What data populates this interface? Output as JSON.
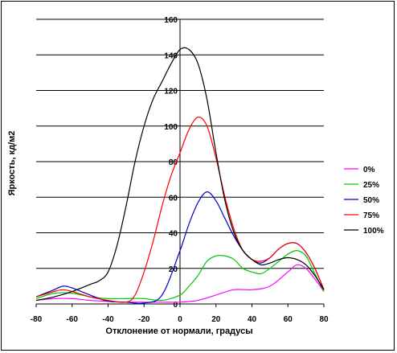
{
  "chart_data": {
    "type": "line",
    "title": "",
    "xlabel": "Отклонение от нормали, градусы",
    "ylabel": "Яркость, кд/м2",
    "xlim": [
      -80,
      80
    ],
    "ylim": [
      0,
      160
    ],
    "x_ticks": [
      "-80",
      "-60",
      "-40",
      "-20",
      "0",
      "20",
      "40",
      "60",
      "80"
    ],
    "y_ticks": [
      "0",
      "20",
      "40",
      "60",
      "80",
      "100",
      "120",
      "140",
      "160"
    ],
    "grid": "horizontal",
    "legend_position": "right",
    "series": [
      {
        "name": "0%",
        "color": "#ff00ff",
        "points": [
          [
            -80,
            2
          ],
          [
            -70,
            3
          ],
          [
            -60,
            3
          ],
          [
            -50,
            2
          ],
          [
            -40,
            1.5
          ],
          [
            -30,
            1
          ],
          [
            -20,
            1
          ],
          [
            -10,
            1
          ],
          [
            0,
            1
          ],
          [
            10,
            2
          ],
          [
            20,
            5
          ],
          [
            30,
            8
          ],
          [
            40,
            8
          ],
          [
            50,
            10
          ],
          [
            60,
            18
          ],
          [
            65,
            22
          ],
          [
            70,
            20
          ],
          [
            75,
            14
          ],
          [
            80,
            7
          ]
        ]
      },
      {
        "name": "25%",
        "color": "#00cc00",
        "points": [
          [
            -80,
            3
          ],
          [
            -70,
            6
          ],
          [
            -60,
            6
          ],
          [
            -50,
            4
          ],
          [
            -40,
            3
          ],
          [
            -30,
            3
          ],
          [
            -20,
            3
          ],
          [
            -10,
            2
          ],
          [
            0,
            5
          ],
          [
            5,
            10
          ],
          [
            10,
            16
          ],
          [
            15,
            24
          ],
          [
            20,
            27
          ],
          [
            25,
            27
          ],
          [
            30,
            25
          ],
          [
            35,
            20
          ],
          [
            40,
            18
          ],
          [
            45,
            17
          ],
          [
            50,
            20
          ],
          [
            55,
            24
          ],
          [
            60,
            28
          ],
          [
            65,
            30
          ],
          [
            70,
            27
          ],
          [
            75,
            17
          ],
          [
            80,
            7
          ]
        ]
      },
      {
        "name": "50%",
        "color": "#0000cc",
        "points": [
          [
            -80,
            4
          ],
          [
            -75,
            6
          ],
          [
            -70,
            8
          ],
          [
            -65,
            10
          ],
          [
            -60,
            9
          ],
          [
            -50,
            5
          ],
          [
            -40,
            1.5
          ],
          [
            -30,
            1
          ],
          [
            -20,
            0.5
          ],
          [
            -10,
            5
          ],
          [
            0,
            30
          ],
          [
            5,
            45
          ],
          [
            10,
            57
          ],
          [
            15,
            63
          ],
          [
            20,
            58
          ],
          [
            25,
            48
          ],
          [
            30,
            38
          ],
          [
            35,
            30
          ],
          [
            40,
            25
          ],
          [
            45,
            23
          ],
          [
            50,
            26
          ],
          [
            55,
            31
          ],
          [
            60,
            34
          ],
          [
            65,
            34
          ],
          [
            70,
            29
          ],
          [
            75,
            20
          ],
          [
            80,
            8
          ]
        ]
      },
      {
        "name": "75%",
        "color": "#ff0000",
        "points": [
          [
            -80,
            4
          ],
          [
            -70,
            7
          ],
          [
            -65,
            8
          ],
          [
            -60,
            7
          ],
          [
            -50,
            4
          ],
          [
            -40,
            2
          ],
          [
            -30,
            1
          ],
          [
            -25,
            5
          ],
          [
            -20,
            18
          ],
          [
            -15,
            35
          ],
          [
            -10,
            55
          ],
          [
            -5,
            72
          ],
          [
            0,
            85
          ],
          [
            5,
            98
          ],
          [
            10,
            105
          ],
          [
            15,
            100
          ],
          [
            20,
            82
          ],
          [
            25,
            60
          ],
          [
            30,
            42
          ],
          [
            35,
            30
          ],
          [
            40,
            25
          ],
          [
            45,
            24
          ],
          [
            50,
            26
          ],
          [
            55,
            31
          ],
          [
            60,
            34
          ],
          [
            65,
            34
          ],
          [
            70,
            29
          ],
          [
            75,
            20
          ],
          [
            80,
            8
          ]
        ]
      },
      {
        "name": "100%",
        "color": "#000000",
        "points": [
          [
            -80,
            2
          ],
          [
            -70,
            4
          ],
          [
            -60,
            7
          ],
          [
            -50,
            11
          ],
          [
            -45,
            13
          ],
          [
            -40,
            18
          ],
          [
            -35,
            33
          ],
          [
            -30,
            55
          ],
          [
            -25,
            80
          ],
          [
            -20,
            100
          ],
          [
            -15,
            115
          ],
          [
            -10,
            125
          ],
          [
            -5,
            135
          ],
          [
            0,
            143
          ],
          [
            5,
            143
          ],
          [
            10,
            135
          ],
          [
            15,
            115
          ],
          [
            20,
            85
          ],
          [
            25,
            58
          ],
          [
            30,
            40
          ],
          [
            35,
            30
          ],
          [
            40,
            25
          ],
          [
            45,
            22
          ],
          [
            50,
            23
          ],
          [
            55,
            25
          ],
          [
            60,
            26
          ],
          [
            65,
            25
          ],
          [
            70,
            22
          ],
          [
            75,
            16
          ],
          [
            80,
            8
          ]
        ]
      }
    ]
  }
}
